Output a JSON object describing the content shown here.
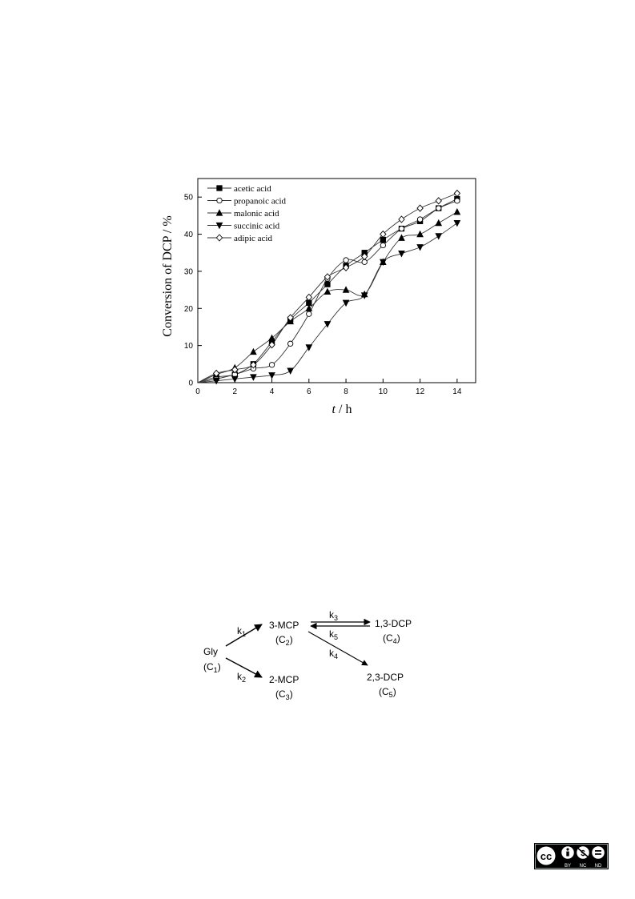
{
  "chart_data": {
    "type": "line",
    "xlabel_var": "t",
    "xlabel_unit": " / h",
    "ylabel": "Conversion of DCP / %",
    "xlim": [
      0,
      15
    ],
    "ylim": [
      0,
      55
    ],
    "xticks": [
      0,
      2,
      4,
      6,
      8,
      10,
      12,
      14
    ],
    "yticks": [
      0,
      10,
      20,
      30,
      40,
      50
    ],
    "legend_position": "top-left",
    "grid": false,
    "x": [
      0,
      1,
      2,
      3,
      4,
      5,
      6,
      7,
      8,
      9,
      10,
      11,
      12,
      13,
      14
    ],
    "series": [
      {
        "name": "acetic acid",
        "marker": "square-filled",
        "values": [
          0,
          1.5,
          2.2,
          5.0,
          11.0,
          17.0,
          21.5,
          26.5,
          31.5,
          35.0,
          38.5,
          41.5,
          43.5,
          47.0,
          49.5
        ]
      },
      {
        "name": "propanoic acid",
        "marker": "circle-open",
        "values": [
          0,
          1.0,
          2.2,
          3.8,
          4.8,
          10.5,
          18.5,
          28.0,
          33.0,
          32.5,
          37.0,
          41.5,
          44.0,
          47.0,
          49.0
        ]
      },
      {
        "name": "malonic acid",
        "marker": "triangle-up-filled",
        "values": [
          0,
          2.2,
          4.0,
          8.3,
          12.0,
          16.5,
          20.0,
          24.5,
          25.0,
          23.8,
          32.5,
          39.0,
          40.0,
          43.0,
          46.0
        ]
      },
      {
        "name": "succinic acid",
        "marker": "triangle-down-filled",
        "values": [
          0,
          0.5,
          1.0,
          1.5,
          2.0,
          3.2,
          9.5,
          15.8,
          21.5,
          23.5,
          32.5,
          34.8,
          36.5,
          39.5,
          43.0
        ]
      },
      {
        "name": "adipic acid",
        "marker": "diamond-open",
        "values": [
          0,
          2.5,
          3.5,
          4.8,
          10.2,
          17.5,
          23.0,
          28.5,
          31.0,
          34.0,
          40.0,
          44.0,
          47.0,
          49.0,
          51.0
        ]
      }
    ]
  },
  "scheme": {
    "gly": "Gly",
    "c1": "(C",
    "c1_sub": "1",
    "mcp3": "3-MCP",
    "c2_sub": "2",
    "mcp2": "2-MCP",
    "c3_sub": "3",
    "dcp13": "1,3-DCP",
    "c4_sub": "4",
    "dcp23": "2,3-DCP",
    "c5_sub": "5",
    "k": "k",
    "k1": "1",
    "k2": "2",
    "k3": "3",
    "k4": "4",
    "k5": "5",
    "close": ")"
  },
  "license": {
    "cc": "cc",
    "by": "BY",
    "nc": "NC",
    "nd": "ND"
  }
}
